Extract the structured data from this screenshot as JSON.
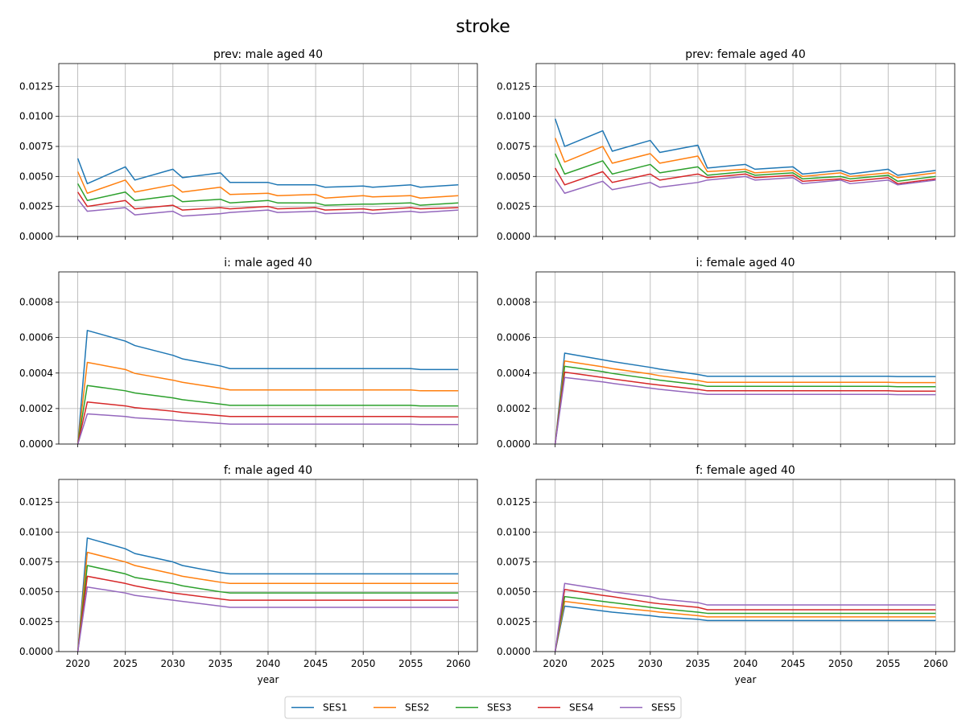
{
  "figure": {
    "suptitle": "stroke",
    "xlabel": "year",
    "x_ticks": [
      2020,
      2025,
      2030,
      2035,
      2040,
      2045,
      2050,
      2055,
      2060
    ],
    "grid": true,
    "legend": {
      "placement": "bottom-center",
      "entries": [
        "SES1",
        "SES2",
        "SES3",
        "SES4",
        "SES5"
      ]
    },
    "series_colors": {
      "SES1": "#1f77b4",
      "SES2": "#ff7f0e",
      "SES3": "#2ca02c",
      "SES4": "#d62728",
      "SES5": "#9467bd"
    }
  },
  "chart_data": [
    {
      "type": "line",
      "title": "prev: male aged 40",
      "xlabel": "",
      "ylabel": "",
      "xlim": [
        2018,
        2062
      ],
      "ylim": [
        0,
        0.0144
      ],
      "y_ticks": [
        "0.0000",
        "0.0025",
        "0.0050",
        "0.0075",
        "0.0100",
        "0.0125"
      ],
      "x": [
        2020,
        2021,
        2025,
        2026,
        2030,
        2031,
        2035,
        2036,
        2040,
        2041,
        2045,
        2046,
        2050,
        2051,
        2055,
        2056,
        2060
      ],
      "series": [
        {
          "name": "SES1",
          "values": [
            0.0065,
            0.0044,
            0.0058,
            0.0047,
            0.0056,
            0.0049,
            0.0053,
            0.0045,
            0.0045,
            0.0043,
            0.0043,
            0.0041,
            0.0042,
            0.0041,
            0.0043,
            0.0041,
            0.0043
          ]
        },
        {
          "name": "SES2",
          "values": [
            0.0054,
            0.0036,
            0.0047,
            0.0037,
            0.0043,
            0.0037,
            0.0041,
            0.0035,
            0.0036,
            0.0034,
            0.0035,
            0.0032,
            0.0034,
            0.0033,
            0.0034,
            0.0032,
            0.0034
          ]
        },
        {
          "name": "SES3",
          "values": [
            0.0044,
            0.003,
            0.0037,
            0.003,
            0.0034,
            0.0029,
            0.0031,
            0.0028,
            0.003,
            0.0028,
            0.0028,
            0.0026,
            0.0027,
            0.0027,
            0.0028,
            0.0026,
            0.0028
          ]
        },
        {
          "name": "SES4",
          "values": [
            0.0037,
            0.0025,
            0.003,
            0.0023,
            0.0026,
            0.0022,
            0.0024,
            0.0023,
            0.0025,
            0.0023,
            0.0024,
            0.0022,
            0.0023,
            0.0022,
            0.0024,
            0.0023,
            0.0024
          ]
        },
        {
          "name": "SES5",
          "values": [
            0.0031,
            0.0021,
            0.0024,
            0.0018,
            0.0021,
            0.0017,
            0.0019,
            0.002,
            0.0022,
            0.002,
            0.0021,
            0.0019,
            0.002,
            0.0019,
            0.0021,
            0.002,
            0.0022
          ]
        }
      ]
    },
    {
      "type": "line",
      "title": "prev: female aged 40",
      "xlabel": "",
      "ylabel": "",
      "xlim": [
        2018,
        2062
      ],
      "ylim": [
        0,
        0.0144
      ],
      "y_ticks": [
        "0.0000",
        "0.0025",
        "0.0050",
        "0.0075",
        "0.0100",
        "0.0125"
      ],
      "x": [
        2020,
        2021,
        2025,
        2026,
        2030,
        2031,
        2035,
        2036,
        2040,
        2041,
        2045,
        2046,
        2050,
        2051,
        2055,
        2056,
        2060
      ],
      "series": [
        {
          "name": "SES1",
          "values": [
            0.0098,
            0.0075,
            0.0088,
            0.0071,
            0.008,
            0.007,
            0.0076,
            0.0057,
            0.006,
            0.0056,
            0.0058,
            0.0052,
            0.0055,
            0.0052,
            0.0056,
            0.0051,
            0.0055
          ]
        },
        {
          "name": "SES2",
          "values": [
            0.0082,
            0.0062,
            0.0075,
            0.0061,
            0.0069,
            0.0061,
            0.0067,
            0.0054,
            0.0056,
            0.0053,
            0.0055,
            0.005,
            0.0053,
            0.005,
            0.0053,
            0.0049,
            0.0053
          ]
        },
        {
          "name": "SES3",
          "values": [
            0.0069,
            0.0052,
            0.0063,
            0.0052,
            0.006,
            0.0053,
            0.0058,
            0.0051,
            0.0054,
            0.0051,
            0.0053,
            0.0048,
            0.005,
            0.0048,
            0.0051,
            0.0046,
            0.005
          ]
        },
        {
          "name": "SES4",
          "values": [
            0.0057,
            0.0043,
            0.0054,
            0.0045,
            0.0052,
            0.0047,
            0.0052,
            0.0049,
            0.0052,
            0.0049,
            0.0051,
            0.0046,
            0.0048,
            0.0046,
            0.0049,
            0.0044,
            0.0048
          ]
        },
        {
          "name": "SES5",
          "values": [
            0.0048,
            0.0036,
            0.0046,
            0.0039,
            0.0045,
            0.0041,
            0.0045,
            0.0047,
            0.005,
            0.0047,
            0.0049,
            0.0044,
            0.0047,
            0.0044,
            0.0047,
            0.0043,
            0.0047
          ]
        }
      ]
    },
    {
      "type": "line",
      "title": "i: male aged 40",
      "xlabel": "",
      "ylabel": "",
      "xlim": [
        2018,
        2062
      ],
      "ylim": [
        0,
        0.00097
      ],
      "y_ticks": [
        "0.0000",
        "0.0002",
        "0.0004",
        "0.0006",
        "0.0008"
      ],
      "x": [
        2020,
        2021,
        2025,
        2026,
        2030,
        2031,
        2035,
        2036,
        2040,
        2041,
        2045,
        2046,
        2050,
        2051,
        2055,
        2056,
        2060
      ],
      "series": [
        {
          "name": "SES1",
          "values": [
            0.0,
            0.00064,
            0.00058,
            0.000555,
            0.0005,
            0.00048,
            0.00044,
            0.000425,
            0.000425,
            0.000425,
            0.000425,
            0.000425,
            0.000425,
            0.000425,
            0.000425,
            0.00042,
            0.00042
          ]
        },
        {
          "name": "SES2",
          "values": [
            0.0,
            0.00046,
            0.00042,
            0.000398,
            0.00036,
            0.000348,
            0.000315,
            0.000305,
            0.000305,
            0.000305,
            0.000305,
            0.000305,
            0.000305,
            0.000305,
            0.000305,
            0.0003,
            0.0003
          ]
        },
        {
          "name": "SES3",
          "values": [
            0.0,
            0.00033,
            0.0003,
            0.000288,
            0.00026,
            0.00025,
            0.000225,
            0.000218,
            0.000218,
            0.000218,
            0.000218,
            0.000218,
            0.000218,
            0.000218,
            0.000218,
            0.000215,
            0.000215
          ]
        },
        {
          "name": "SES4",
          "values": [
            0.0,
            0.000237,
            0.000215,
            0.000205,
            0.000185,
            0.000178,
            0.00016,
            0.000155,
            0.000155,
            0.000155,
            0.000155,
            0.000155,
            0.000155,
            0.000155,
            0.000155,
            0.000153,
            0.000153
          ]
        },
        {
          "name": "SES5",
          "values": [
            0.0,
            0.00017,
            0.000155,
            0.000148,
            0.000135,
            0.00013,
            0.000116,
            0.000112,
            0.000112,
            0.000112,
            0.000112,
            0.000112,
            0.000112,
            0.000112,
            0.000112,
            0.00011,
            0.00011
          ]
        }
      ]
    },
    {
      "type": "line",
      "title": "i: female aged 40",
      "xlabel": "",
      "ylabel": "",
      "xlim": [
        2018,
        2062
      ],
      "ylim": [
        0,
        0.00097
      ],
      "y_ticks": [
        "0.0000",
        "0.0002",
        "0.0004",
        "0.0006",
        "0.0008"
      ],
      "x": [
        2020,
        2021,
        2025,
        2026,
        2030,
        2031,
        2035,
        2036,
        2040,
        2041,
        2045,
        2046,
        2050,
        2051,
        2055,
        2056,
        2060
      ],
      "series": [
        {
          "name": "SES1",
          "values": [
            0.0,
            0.000512,
            0.000475,
            0.000465,
            0.000432,
            0.000422,
            0.000392,
            0.000382,
            0.000382,
            0.000382,
            0.000382,
            0.000382,
            0.000382,
            0.000382,
            0.000382,
            0.00038,
            0.00038
          ]
        },
        {
          "name": "SES2",
          "values": [
            0.0,
            0.000468,
            0.000435,
            0.000425,
            0.000395,
            0.000385,
            0.000358,
            0.000348,
            0.000348,
            0.000348,
            0.000348,
            0.000348,
            0.000348,
            0.000348,
            0.000348,
            0.000346,
            0.000346
          ]
        },
        {
          "name": "SES3",
          "values": [
            0.0,
            0.000438,
            0.000408,
            0.000398,
            0.000368,
            0.00036,
            0.000335,
            0.000325,
            0.000325,
            0.000325,
            0.000325,
            0.000325,
            0.000325,
            0.000325,
            0.000325,
            0.000323,
            0.000323
          ]
        },
        {
          "name": "SES4",
          "values": [
            0.0,
            0.000405,
            0.000375,
            0.000367,
            0.000338,
            0.000332,
            0.000308,
            0.0003,
            0.0003,
            0.0003,
            0.0003,
            0.0003,
            0.0003,
            0.0003,
            0.0003,
            0.000298,
            0.000298
          ]
        },
        {
          "name": "SES5",
          "values": [
            0.0,
            0.000375,
            0.00035,
            0.000342,
            0.000315,
            0.000308,
            0.000286,
            0.00028,
            0.00028,
            0.00028,
            0.00028,
            0.00028,
            0.00028,
            0.00028,
            0.00028,
            0.000278,
            0.000278
          ]
        }
      ]
    },
    {
      "type": "line",
      "title": "f: male aged 40",
      "xlabel": "year",
      "ylabel": "",
      "xlim": [
        2018,
        2062
      ],
      "ylim": [
        0,
        0.0144
      ],
      "y_ticks": [
        "0.0000",
        "0.0025",
        "0.0050",
        "0.0075",
        "0.0100",
        "0.0125"
      ],
      "x": [
        2020,
        2021,
        2025,
        2026,
        2030,
        2031,
        2035,
        2036,
        2040,
        2041,
        2045,
        2046,
        2050,
        2051,
        2055,
        2056,
        2060
      ],
      "series": [
        {
          "name": "SES1",
          "values": [
            0.0,
            0.0095,
            0.0086,
            0.0082,
            0.0075,
            0.0072,
            0.0066,
            0.0065,
            0.0065,
            0.0065,
            0.0065,
            0.0065,
            0.0065,
            0.0065,
            0.0065,
            0.0065,
            0.0065
          ]
        },
        {
          "name": "SES2",
          "values": [
            0.0,
            0.0083,
            0.0075,
            0.0072,
            0.0065,
            0.0063,
            0.0058,
            0.0057,
            0.0057,
            0.0057,
            0.0057,
            0.0057,
            0.0057,
            0.0057,
            0.0057,
            0.0057,
            0.0057
          ]
        },
        {
          "name": "SES3",
          "values": [
            0.0,
            0.0072,
            0.0065,
            0.0062,
            0.0057,
            0.0055,
            0.005,
            0.0049,
            0.0049,
            0.0049,
            0.0049,
            0.0049,
            0.0049,
            0.0049,
            0.0049,
            0.0049,
            0.0049
          ]
        },
        {
          "name": "SES4",
          "values": [
            0.0,
            0.0063,
            0.0057,
            0.0055,
            0.0049,
            0.0048,
            0.0044,
            0.0043,
            0.0043,
            0.0043,
            0.0043,
            0.0043,
            0.0043,
            0.0043,
            0.0043,
            0.0043,
            0.0043
          ]
        },
        {
          "name": "SES5",
          "values": [
            0.0,
            0.0054,
            0.0049,
            0.0047,
            0.0043,
            0.0042,
            0.0038,
            0.0037,
            0.0037,
            0.0037,
            0.0037,
            0.0037,
            0.0037,
            0.0037,
            0.0037,
            0.0037,
            0.0037
          ]
        }
      ]
    },
    {
      "type": "line",
      "title": "f: female aged 40",
      "xlabel": "year",
      "ylabel": "",
      "xlim": [
        2018,
        2062
      ],
      "ylim": [
        0,
        0.0144
      ],
      "y_ticks": [
        "0.0000",
        "0.0025",
        "0.0050",
        "0.0075",
        "0.0100",
        "0.0125"
      ],
      "x": [
        2020,
        2021,
        2025,
        2026,
        2030,
        2031,
        2035,
        2036,
        2040,
        2041,
        2045,
        2046,
        2050,
        2051,
        2055,
        2056,
        2060
      ],
      "series": [
        {
          "name": "SES1",
          "values": [
            0.0,
            0.0038,
            0.0034,
            0.0033,
            0.003,
            0.0029,
            0.0027,
            0.0026,
            0.0026,
            0.0026,
            0.0026,
            0.0026,
            0.0026,
            0.0026,
            0.0026,
            0.0026,
            0.0026
          ]
        },
        {
          "name": "SES2",
          "values": [
            0.0,
            0.0042,
            0.0038,
            0.0037,
            0.0034,
            0.0033,
            0.003,
            0.0029,
            0.0029,
            0.0029,
            0.0029,
            0.0029,
            0.0029,
            0.0029,
            0.0029,
            0.0029,
            0.0029
          ]
        },
        {
          "name": "SES3",
          "values": [
            0.0,
            0.0046,
            0.0042,
            0.0041,
            0.0037,
            0.0036,
            0.0033,
            0.0032,
            0.0032,
            0.0032,
            0.0032,
            0.0032,
            0.0032,
            0.0032,
            0.0032,
            0.0032,
            0.0032
          ]
        },
        {
          "name": "SES4",
          "values": [
            0.0,
            0.0052,
            0.0047,
            0.0046,
            0.0041,
            0.004,
            0.0037,
            0.0035,
            0.0035,
            0.0035,
            0.0035,
            0.0035,
            0.0035,
            0.0035,
            0.0035,
            0.0035,
            0.0035
          ]
        },
        {
          "name": "SES5",
          "values": [
            0.0,
            0.0057,
            0.0052,
            0.005,
            0.0046,
            0.0044,
            0.0041,
            0.0039,
            0.0039,
            0.0039,
            0.0039,
            0.0039,
            0.0039,
            0.0039,
            0.0039,
            0.0039,
            0.0039
          ]
        }
      ]
    }
  ]
}
